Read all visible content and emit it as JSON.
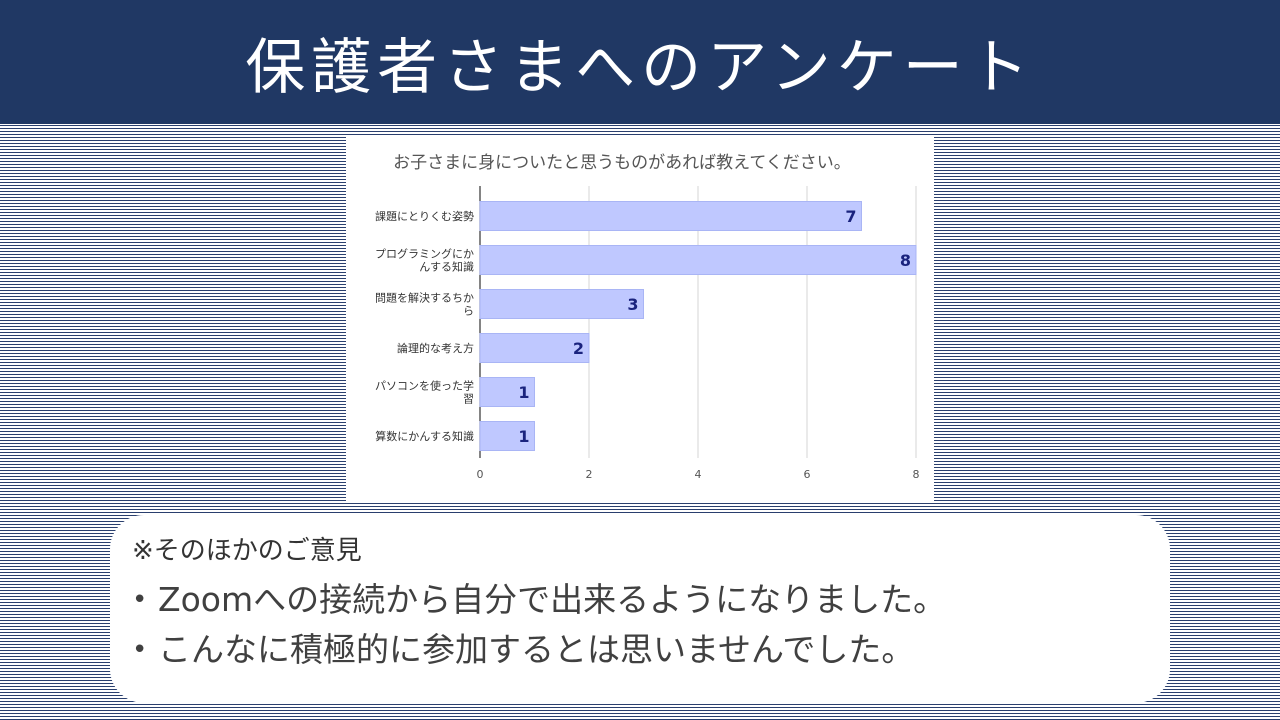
{
  "header": {
    "title": "保護者さまへのアンケート"
  },
  "chart_data": {
    "type": "bar",
    "orientation": "horizontal",
    "title": "お子さまに身についたと思うものがあれば教えてください。",
    "categories": [
      [
        "課題にとりくむ姿勢"
      ],
      [
        "プログラミングにか",
        "んする知識"
      ],
      [
        "問題を解決するちか",
        "ら"
      ],
      [
        "論理的な考え方"
      ],
      [
        "パソコンを使った学",
        "習"
      ],
      [
        "算数にかんする知識"
      ]
    ],
    "values": [
      7,
      8,
      3,
      2,
      1,
      1
    ],
    "xlim": [
      0,
      8
    ],
    "xticks": [
      "0",
      "2",
      "4",
      "6",
      "8"
    ],
    "grid": true,
    "legend": "none",
    "bar_color": "#bfc8ff",
    "bar_border": "#a9b5f5",
    "label_color": "#1a237e"
  },
  "notes": {
    "title": "※そのほかのご意見",
    "items": [
      "Zoomへの接続から自分で出来るようになりました。",
      "こんなに積極的に参加するとは思いませんでした。"
    ],
    "bullet": "•"
  }
}
